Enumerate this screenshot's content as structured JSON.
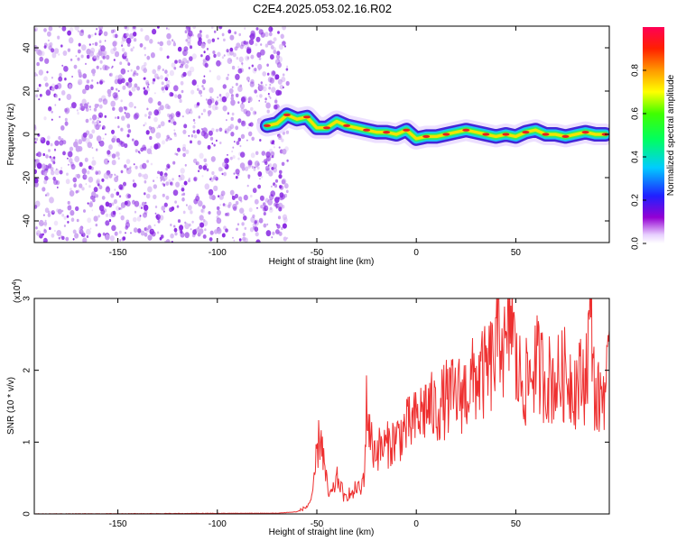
{
  "title": "C2E4.2025.053.02.16.R02",
  "colors": {
    "snr_line": "#ee3030",
    "noise": "#8a2be2",
    "axis": "#000000"
  },
  "chart_data": [
    {
      "type": "heatmap",
      "xlabel": "Height of straight line (km)",
      "ylabel": "Frequency (Hz)",
      "xlim": [
        -192,
        97
      ],
      "ylim": [
        -50,
        50
      ],
      "x_ticks": [
        -150,
        -100,
        -50,
        0,
        50
      ],
      "y_ticks": [
        -40,
        -20,
        0,
        20,
        40
      ],
      "noise_region_x": [
        -192,
        -70
      ],
      "signal_track": {
        "x": [
          -75,
          -70,
          -65,
          -60,
          -55,
          -50,
          -45,
          -40,
          -35,
          -30,
          -25,
          -20,
          -15,
          -10,
          -5,
          0,
          5,
          10,
          15,
          20,
          25,
          30,
          35,
          40,
          45,
          50,
          55,
          60,
          65,
          70,
          75,
          80,
          85,
          90,
          95
        ],
        "y": [
          4,
          5,
          9,
          7,
          8,
          3,
          3,
          6,
          4,
          3,
          2,
          1,
          1,
          0,
          2,
          -2,
          -1,
          -1,
          0,
          1,
          2,
          1,
          0,
          -1,
          0,
          -1,
          1,
          2,
          0,
          0,
          -1,
          0,
          1,
          0,
          0
        ]
      },
      "colorbar": {
        "label": "Normalized spectral amplitude",
        "ticks": [
          "0.0",
          "0.2",
          "0.4",
          "0.6",
          "0.8"
        ],
        "range": [
          0,
          1
        ]
      }
    },
    {
      "type": "line",
      "xlabel": "Height of straight line (km)",
      "ylabel": "SNR (10 * v/v)",
      "scale_label": "(x10",
      "scale_exp": "4",
      "scale_close": ")",
      "xlim": [
        -192,
        97
      ],
      "ylim": [
        0,
        3
      ],
      "x_ticks": [
        -150,
        -100,
        -50,
        0,
        50
      ],
      "y_ticks": [
        0,
        1,
        2,
        3
      ],
      "series": [
        {
          "x": [
            -192,
            -70,
            -60,
            -55,
            -52,
            -50,
            -48,
            -46,
            -44,
            -42,
            -40,
            -38,
            -36,
            -34,
            -32,
            -30,
            -28,
            -26,
            -25,
            -22,
            -20,
            -15,
            -10,
            -5,
            0,
            5,
            10,
            15,
            20,
            25,
            30,
            35,
            40,
            42,
            45,
            48,
            50,
            55,
            60,
            65,
            70,
            75,
            80,
            85,
            88,
            90,
            95,
            97
          ],
          "y": [
            0,
            0.01,
            0.03,
            0.1,
            0.25,
            0.85,
            1.15,
            0.6,
            0.25,
            0.3,
            0.5,
            0.4,
            0.2,
            0.3,
            0.25,
            0.4,
            0.3,
            0.6,
            1.5,
            0.9,
            0.9,
            0.95,
            1.05,
            1.2,
            1.3,
            1.5,
            1.45,
            1.6,
            1.65,
            1.7,
            1.9,
            1.95,
            2.2,
            2.7,
            2.1,
            2.9,
            2.0,
            1.8,
            2.1,
            1.9,
            1.85,
            1.95,
            1.8,
            1.9,
            2.9,
            1.5,
            1.8,
            1.9
          ]
        }
      ]
    }
  ]
}
